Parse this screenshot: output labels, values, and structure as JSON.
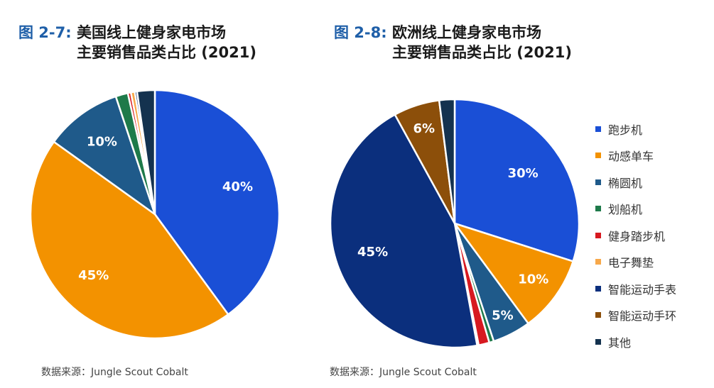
{
  "chart_data": [
    {
      "type": "pie",
      "title_prefix": "图 2-7:",
      "title_line1": "美国线上健身家电市场",
      "title_line2": "主要销售品类占比 (2021)",
      "source": "数据来源：Jungle Scout Cobalt",
      "categories": [
        "跑步机",
        "动感单车",
        "椭圆机",
        "划船机",
        "健身踏步机",
        "电子舞垫",
        "智能运动手表",
        "智能运动手环",
        "其他"
      ],
      "values": [
        40,
        45,
        10,
        1.6,
        0.4,
        0.5,
        0.3,
        0.0,
        2.3
      ],
      "data_labels": [
        "40%",
        "45%",
        "10%",
        "",
        "",
        "",
        "",
        "",
        ""
      ]
    },
    {
      "type": "pie",
      "title_prefix": "图 2-8:",
      "title_line1": "欧洲线上健身家电市场",
      "title_line2": "主要销售品类占比 (2021)",
      "source": "数据来源：Jungle Scout Cobalt",
      "categories": [
        "跑步机",
        "动感单车",
        "椭圆机",
        "划船机",
        "健身踏步机",
        "电子舞垫",
        "智能运动手表",
        "智能运动手环",
        "其他"
      ],
      "values": [
        30,
        10,
        5,
        0.6,
        1.4,
        0.2,
        45,
        6,
        2.0
      ],
      "data_labels": [
        "30%",
        "10%",
        "5%",
        "",
        "",
        "",
        "45%",
        "6%",
        ""
      ]
    }
  ],
  "legend": {
    "items": [
      "跑步机",
      "动感单车",
      "椭圆机",
      "划船机",
      "健身踏步机",
      "电子舞垫",
      "智能运动手表",
      "智能运动手环",
      "其他"
    ],
    "colors": [
      "#1a4fd6",
      "#f39200",
      "#1f5a8a",
      "#1e7a4a",
      "#d71920",
      "#f7a84a",
      "#0b2f7d",
      "#8c4f0a",
      "#14324f"
    ]
  }
}
